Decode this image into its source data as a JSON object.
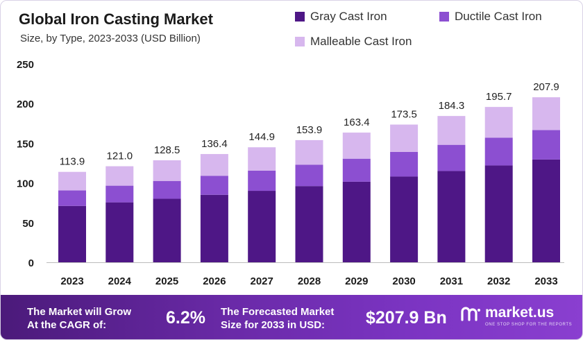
{
  "header": {
    "title": "Global Iron Casting Market",
    "subtitle": "Size, by Type, 2023-2033 (USD Billion)"
  },
  "colors": {
    "gray_cast_iron": "#4e1786",
    "ductile_cast_iron": "#8c4fd1",
    "malleable_cast_iron": "#d7b7ee",
    "footer_start": "#4b1a7a",
    "footer_end": "#8a3fd0"
  },
  "chart_data": {
    "type": "bar",
    "stacked": true,
    "categories": [
      "2023",
      "2024",
      "2025",
      "2026",
      "2027",
      "2028",
      "2029",
      "2030",
      "2031",
      "2032",
      "2033"
    ],
    "series": [
      {
        "name": "Gray Cast Iron",
        "values": [
          71.0,
          75.5,
          80.0,
          85.0,
          90.0,
          96.0,
          101.5,
          108.0,
          115.0,
          122.0,
          129.5
        ]
      },
      {
        "name": "Ductile Cast Iron",
        "values": [
          19.5,
          21.0,
          22.5,
          24.0,
          25.5,
          27.0,
          29.0,
          31.0,
          33.0,
          35.0,
          37.0
        ]
      },
      {
        "name": "Malleable Cast Iron",
        "values": [
          23.4,
          24.5,
          26.0,
          27.4,
          29.4,
          30.9,
          32.9,
          34.5,
          36.3,
          38.7,
          41.4
        ]
      }
    ],
    "totals": [
      "113.9",
      "121.0",
      "128.5",
      "136.4",
      "144.9",
      "153.9",
      "163.4",
      "173.5",
      "184.3",
      "195.7",
      "207.9"
    ],
    "yticks": [
      "0",
      "50",
      "100",
      "150",
      "200",
      "250"
    ],
    "ylim": [
      0,
      250
    ],
    "grid": false,
    "legend_position": "top-right"
  },
  "footer": {
    "cagr_text_line1": "The Market will Grow",
    "cagr_text_line2": "At the CAGR of:",
    "cagr_value": "6.2%",
    "forecast_text_line1": "The Forecasted Market",
    "forecast_text_line2": "Size for 2033 in USD:",
    "forecast_value": "$207.9 Bn",
    "logo_name": "market.us",
    "logo_tagline": "ONE STOP SHOP FOR THE REPORTS",
    "logo_icon": "market-us-logo-icon"
  }
}
